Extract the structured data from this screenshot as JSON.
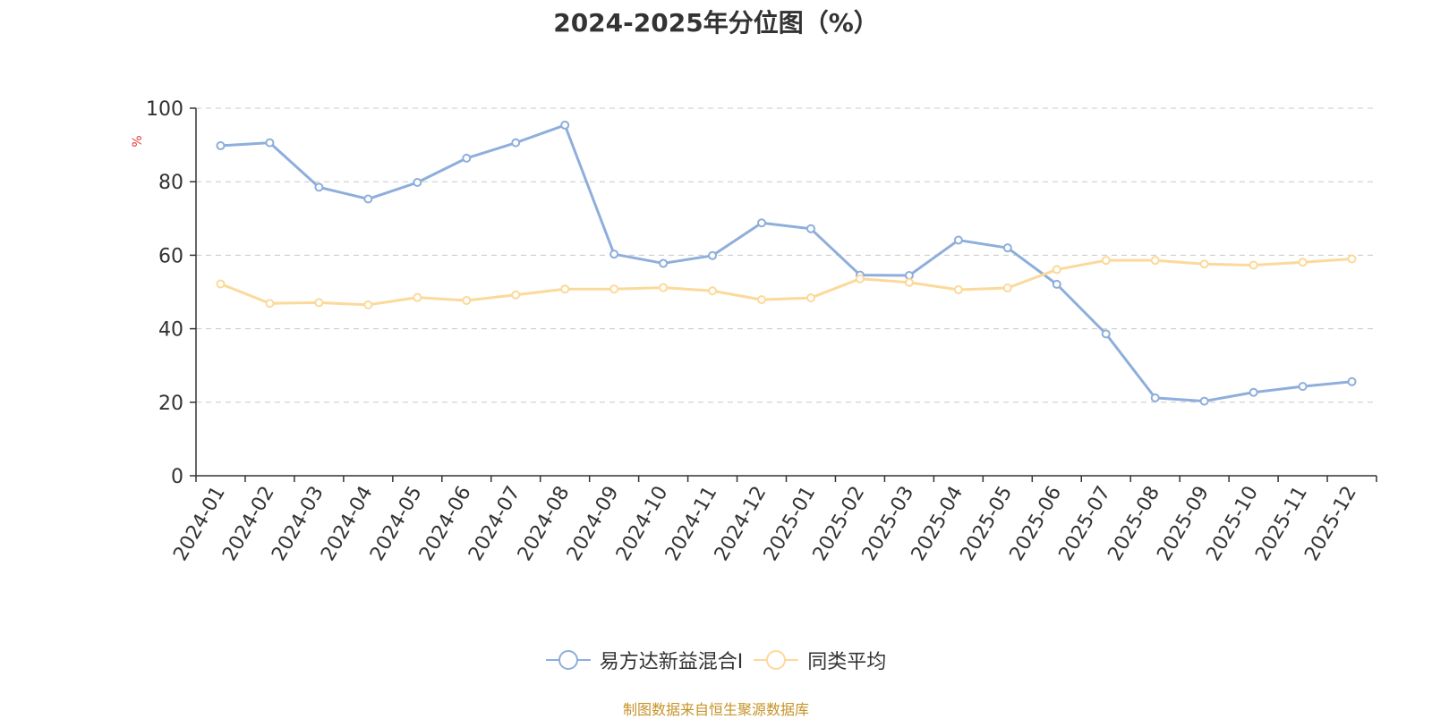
{
  "chart_data": {
    "type": "line",
    "title": "2024-2025年分位图（%）",
    "ylabel": "%",
    "xlabel": "",
    "ylim": [
      0,
      100
    ],
    "yticks": [
      0,
      20,
      40,
      60,
      80,
      100
    ],
    "grid": true,
    "legend_position": "bottom",
    "categories": [
      "2024-01",
      "2024-02",
      "2024-03",
      "2024-04",
      "2024-05",
      "2024-06",
      "2024-07",
      "2024-08",
      "2024-09",
      "2024-10",
      "2024-11",
      "2024-12",
      "2025-01",
      "2025-02",
      "2025-03",
      "2025-04",
      "2025-05",
      "2025-06",
      "2025-07",
      "2025-08",
      "2025-09",
      "2025-10",
      "2025-11",
      "2025-12"
    ],
    "series": [
      {
        "name": "易方达新益混合I",
        "color": "#8eaedb",
        "values": [
          89.8,
          90.6,
          78.5,
          75.3,
          79.8,
          86.4,
          90.6,
          95.4,
          60.3,
          57.8,
          59.9,
          68.8,
          67.2,
          54.6,
          54.5,
          64.1,
          62.0,
          52.1,
          38.6,
          21.2,
          20.3,
          22.7,
          24.3,
          25.6
        ]
      },
      {
        "name": "同类平均",
        "color": "#fcd99a",
        "values": [
          52.2,
          46.9,
          47.1,
          46.5,
          48.5,
          47.7,
          49.2,
          50.8,
          50.8,
          51.2,
          50.3,
          47.9,
          48.4,
          53.6,
          52.6,
          50.6,
          51.1,
          56.1,
          58.6,
          58.6,
          57.6,
          57.3,
          58.1,
          59.0
        ]
      }
    ]
  },
  "source_note": "制图数据来自恒生聚源数据库"
}
